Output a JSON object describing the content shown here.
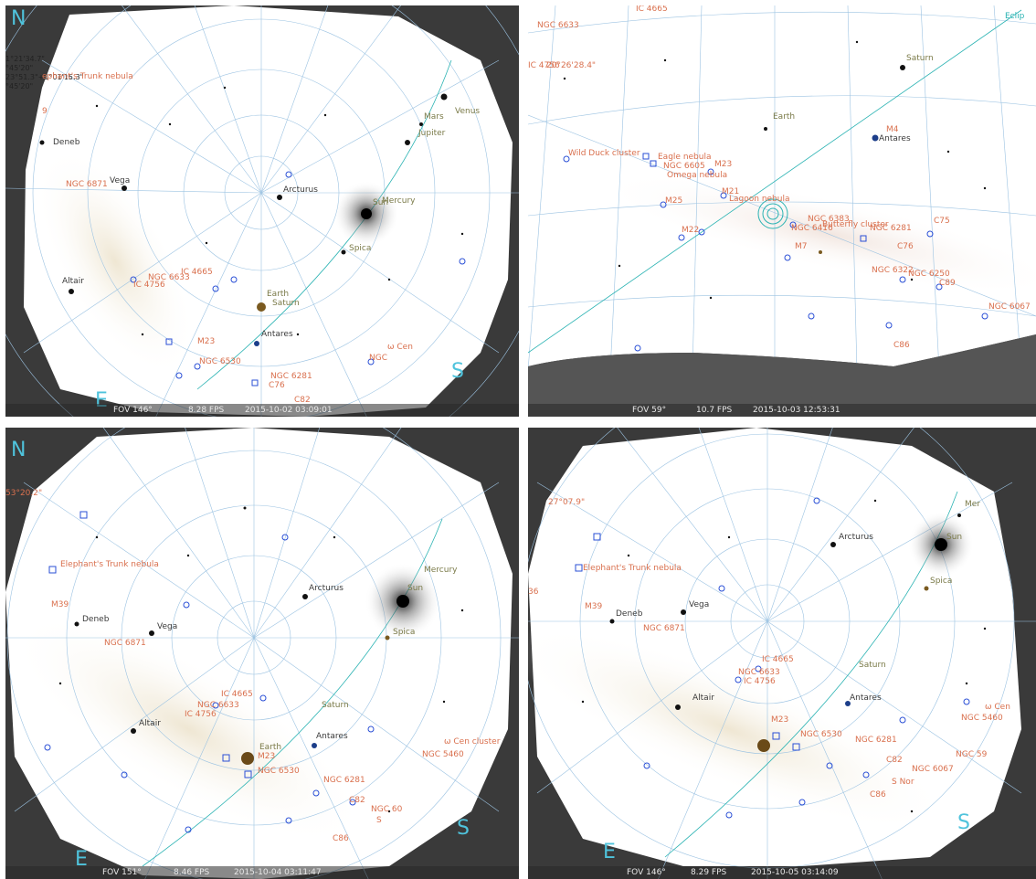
{
  "panels": [
    {
      "id": "p0",
      "compass": {
        "north": "N",
        "east": "E",
        "south": "S"
      },
      "status": {
        "fov": "FOV 146°",
        "fps": "8.28 FPS",
        "datetime": "2015-10-02  03:09:01"
      },
      "coords": [
        "1°21'34.7\"",
        "°45'20\"",
        "23°51.3\"+1°01'15.3\"",
        "°45'20\""
      ],
      "labels": {
        "elephant": "ephant's Trunk nebula",
        "deneb": "Deneb",
        "vega": "Vega",
        "ngc6871": "NGC 6871",
        "altair": "Altair",
        "ic4665": "IC 4665",
        "ngc6633": "NGC 6633",
        "ic4756": "IC 4756",
        "arcturus": "Arcturus",
        "sun": "Sun",
        "mercury": "Mercury",
        "spica": "Spica",
        "earth": "Earth",
        "saturn": "Saturn",
        "antares": "Antares",
        "mars": "Mars",
        "jupiter": "Jupiter",
        "venus": "Venus",
        "m23": "M23",
        "ngc6530": "NGC 6530",
        "ngc6281": "NGC 6281",
        "c76": "C76",
        "c82": "C82",
        "ngc": "NGC",
        "omegacen": "ω Cen",
        "nine": "9"
      }
    },
    {
      "id": "p1",
      "status": {
        "fov": "FOV 59°",
        "fps": "10.7 FPS",
        "datetime": "2015-10-03  12:53:31"
      },
      "coords": [
        "IC 4665",
        "NGC 6633",
        "IC 4756",
        "20°26'28.4\""
      ],
      "labels": {
        "saturn": "Saturn",
        "earth": "Earth",
        "m4": "M4",
        "antares": "Antares",
        "wildduck": "Wild Duck cluster",
        "eagle": "Eagle nebula",
        "ngc6605": "NGC 6605",
        "m23": "M23",
        "omega": "Omega nebula",
        "m21": "M21",
        "lagoon": "Lagoon nebula",
        "ngc6383": "NGC 6383",
        "ngc6416": "NGC 6416",
        "butterfly": "Butterfly cluster",
        "ngc6281": "NGC 6281",
        "c75": "C75",
        "m25": "M25",
        "m22": "M22",
        "m7": "M7",
        "c76": "C76",
        "ngc6322": "NGC 6322",
        "ngc6250": "NGC 6250",
        "c89": "C89",
        "ngc6067": "NGC 6067",
        "c86": "C86",
        "ecliptic": "Eclip"
      }
    },
    {
      "id": "p2",
      "compass": {
        "north": "N",
        "east": "E",
        "south": "S"
      },
      "status": {
        "fov": "FOV 151°",
        "fps": "8.46 FPS",
        "datetime": "2015-10-04  03:11:47"
      },
      "coords": [
        "53°20.2\""
      ],
      "labels": {
        "elephant": "Elephant's Trunk nebula",
        "m39": "M39",
        "deneb": "Deneb",
        "vega": "Vega",
        "ngc6871": "NGC 6871",
        "arcturus": "Arcturus",
        "sun": "Sun",
        "mercury": "Mercury",
        "spica": "Spica",
        "ic4665": "IC 4665",
        "ngc6633": "NGC 6633",
        "ic4756": "IC 4756",
        "saturn": "Saturn",
        "altair": "Altair",
        "earth": "Earth",
        "m23": "M23",
        "antares": "Antares",
        "omegacen": "ω Cen cluster",
        "ngc5460": "NGC 5460",
        "ngc6530": "NGC 6530",
        "ngc6281": "NGC 6281",
        "c82": "C82",
        "ngc6067": "NGC 60",
        "c86": "C86",
        "s": "S"
      }
    },
    {
      "id": "p3",
      "compass": {
        "east": "E",
        "south": "S"
      },
      "status": {
        "fov": "FOV 146°",
        "fps": "8.29 FPS",
        "datetime": "2015-10-05  03:14:09"
      },
      "coords": [
        "27°07.9\""
      ],
      "labels": {
        "mercury": "Mer",
        "sun": "Sun",
        "arcturus": "Arcturus",
        "spica": "Spica",
        "elephant": "Elephant's Trunk nebula",
        "m39": "M39",
        "deneb": "Deneb",
        "vega": "Vega",
        "ngc6871": "NGC 6871",
        "ic4665": "IC 4665",
        "ngc6633": "NGC 6633",
        "ic4756": "IC 4756",
        "saturn": "Saturn",
        "altair": "Altair",
        "antares": "Antares",
        "m23": "M23",
        "omegacen": "ω Cen",
        "ngc5460": "NGC 5460",
        "ngc6530": "NGC 6530",
        "ngc6281": "NGC 6281",
        "c82": "C82",
        "ngc6067": "NGC 6067",
        "c86": "C86",
        "snorma": "S Nor",
        "ngc59": "NGC 59",
        "n36": "36"
      }
    }
  ]
}
